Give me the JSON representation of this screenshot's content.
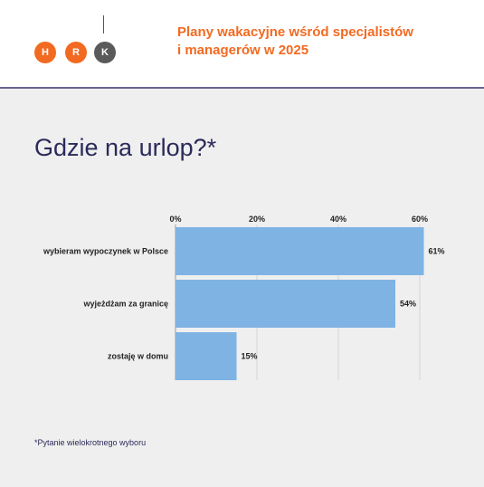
{
  "header": {
    "logo_letters": [
      "H",
      "R",
      "K"
    ],
    "title_line1": "Plany wakacyjne wśród specjalistów",
    "title_line2": "i managerów w 2025"
  },
  "colors": {
    "brand_orange": "#f26a21",
    "logo_gray": "#5a5a5a",
    "bar_fill": "#7fb3e3",
    "title_navy": "#2b2a5a"
  },
  "chart_data": {
    "type": "bar",
    "orientation": "horizontal",
    "title": "Gdzie na urlop?*",
    "categories": [
      "wybieram wypoczynek w Polsce",
      "wyjeżdżam za granicę",
      "zostaję w domu"
    ],
    "values": [
      61,
      54,
      15
    ],
    "value_labels": [
      "61%",
      "54%",
      "15%"
    ],
    "x_ticks": [
      "0%",
      "20%",
      "40%",
      "60%"
    ],
    "x_tick_values": [
      0,
      20,
      40,
      60
    ],
    "xlim": [
      0,
      62
    ],
    "grid": true,
    "axis_position": "top"
  },
  "footnote": "*Pytanie wielokrotnego wyboru"
}
